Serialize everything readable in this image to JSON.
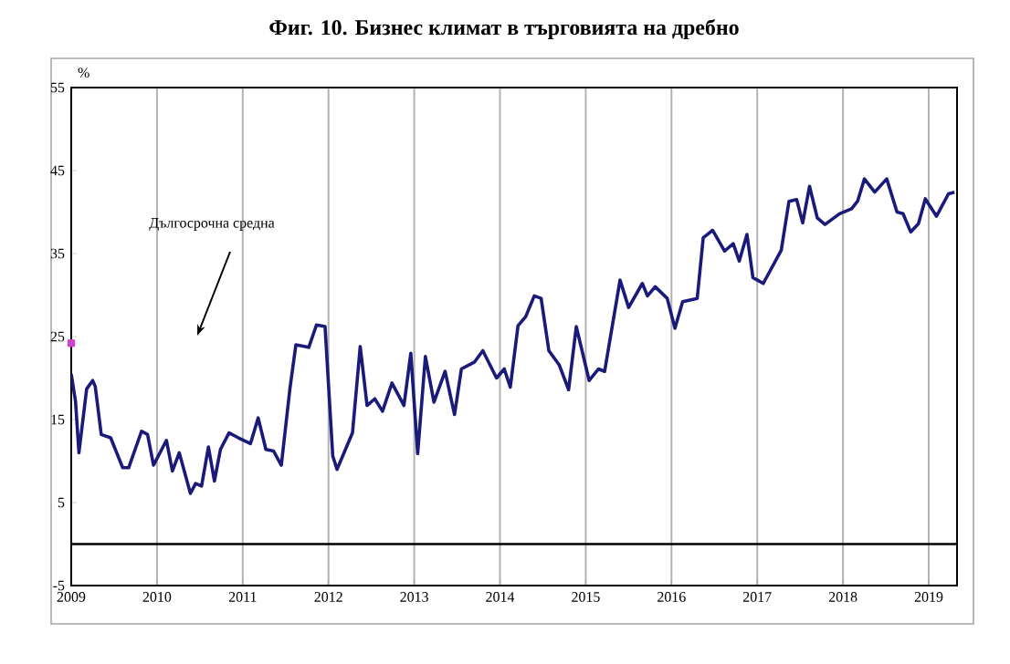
{
  "chart_data": {
    "type": "line",
    "title": "Фиг. 10. Бизнес климат в търговията на дребно",
    "ylabel": "%",
    "xlim": [
      2009,
      2019.33
    ],
    "xticks": [
      2009,
      2010,
      2011,
      2012,
      2013,
      2014,
      2015,
      2016,
      2017,
      2018,
      2019
    ],
    "ylim": [
      -5,
      55
    ],
    "yticks": [
      -5,
      5,
      15,
      25,
      35,
      45,
      55
    ],
    "grid": "x",
    "ref_lines": [
      {
        "axis": "y",
        "value": 0,
        "color": "#000000"
      }
    ],
    "annotations": [
      "Дългосрочна средна"
    ],
    "series": [
      {
        "color": "#1a1a7a",
        "line_style": "solid",
        "x": [
          2009.0,
          2009.05,
          2009.09,
          2009.18,
          2009.25,
          2009.28,
          2009.35,
          2009.46,
          2009.6,
          2009.67,
          2009.82,
          2009.89,
          2009.96,
          2010.11,
          2010.18,
          2010.26,
          2010.39,
          2010.45,
          2010.52,
          2010.6,
          2010.67,
          2010.74,
          2010.84,
          2010.95,
          2011.09,
          2011.18,
          2011.27,
          2011.36,
          2011.45,
          2011.55,
          2011.62,
          2011.77,
          2011.86,
          2011.96,
          2012.05,
          2012.1,
          2012.28,
          2012.37,
          2012.45,
          2012.54,
          2012.63,
          2012.74,
          2012.88,
          2012.96,
          2013.04,
          2013.13,
          2013.23,
          2013.36,
          2013.47,
          2013.55,
          2013.7,
          2013.8,
          2013.96,
          2014.05,
          2014.12,
          2014.21,
          2014.3,
          2014.4,
          2014.48,
          2014.57,
          2014.69,
          2014.8,
          2014.89,
          2015.04,
          2015.15,
          2015.22,
          2015.4,
          2015.5,
          2015.66,
          2015.72,
          2015.81,
          2015.95,
          2016.04,
          2016.13,
          2016.3,
          2016.37,
          2016.48,
          2016.62,
          2016.72,
          2016.79,
          2016.88,
          2016.95,
          2017.07,
          2017.28,
          2017.37,
          2017.46,
          2017.53,
          2017.61,
          2017.7,
          2017.79,
          2017.96,
          2018.1,
          2018.17,
          2018.25,
          2018.37,
          2018.51,
          2018.63,
          2018.7,
          2018.79,
          2018.88,
          2018.96,
          2019.09,
          2019.23,
          2019.3
        ],
        "values": [
          20.5,
          17.2,
          11,
          18.7,
          19.7,
          19,
          13.2,
          12.8,
          9.2,
          9.2,
          13.6,
          13.2,
          9.5,
          12.5,
          8.8,
          11,
          6.1,
          7.3,
          7,
          11.7,
          7.6,
          11.4,
          13.4,
          12.8,
          12.1,
          15.2,
          11.4,
          11.2,
          9.5,
          18.7,
          24,
          23.7,
          26.4,
          26.2,
          10.6,
          9,
          13.4,
          23.8,
          16.7,
          17.5,
          16,
          19.4,
          16.7,
          23,
          10.9,
          22.6,
          17.1,
          20.8,
          15.6,
          21.1,
          21.9,
          23.3,
          20,
          21.1,
          18.9,
          26.3,
          27.4,
          29.9,
          29.6,
          23.3,
          21.6,
          18.6,
          26.2,
          19.7,
          21.1,
          20.8,
          31.8,
          28.5,
          31.4,
          29.9,
          31,
          29.6,
          26,
          29.2,
          29.6,
          36.9,
          37.8,
          35.3,
          36.2,
          34.1,
          37.3,
          32.1,
          31.4,
          35.4,
          41.3,
          41.5,
          38.7,
          43.1,
          39.3,
          38.5,
          39.8,
          40.4,
          41.3,
          44,
          42.4,
          44,
          40,
          39.8,
          37.6,
          38.6,
          41.6,
          39.5,
          42.2,
          42.4
        ]
      },
      {
        "type": "scatter",
        "color": "#cc44cc",
        "marker": "square",
        "x": [
          2009
        ],
        "values": [
          24.2
        ]
      }
    ]
  }
}
